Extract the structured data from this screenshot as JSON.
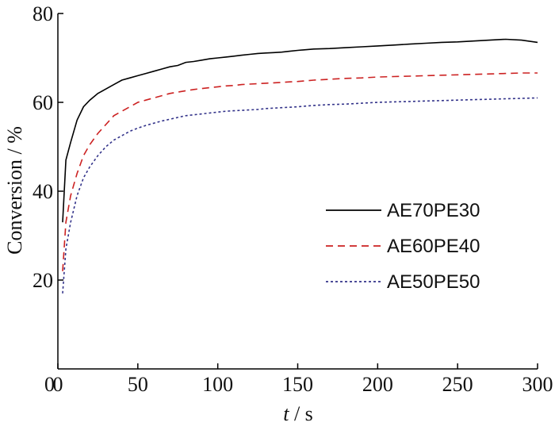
{
  "chart_data": {
    "type": "line",
    "xlabel_italic": "t",
    "xlabel_rest": " / s",
    "ylabel": "Conversion / %",
    "xlim": [
      0,
      300
    ],
    "ylim": [
      0,
      80
    ],
    "xticks": [
      0,
      50,
      100,
      150,
      200,
      250,
      300
    ],
    "yticks": [
      20,
      40,
      60,
      80
    ],
    "grid": false,
    "legend_position": "right",
    "series": [
      {
        "name": "AE70PE30",
        "color": "#000000",
        "dash": "solid",
        "x": [
          3,
          5,
          8,
          12,
          16,
          20,
          25,
          30,
          35,
          40,
          45,
          50,
          55,
          60,
          65,
          70,
          75,
          80,
          85,
          90,
          95,
          100,
          105,
          110,
          115,
          120,
          125,
          130,
          135,
          140,
          145,
          150,
          160,
          170,
          180,
          190,
          200,
          210,
          220,
          230,
          240,
          250,
          260,
          270,
          280,
          290,
          300
        ],
        "values": [
          33,
          47,
          51,
          56,
          59,
          60.5,
          62,
          63,
          64,
          65,
          65.5,
          66,
          66.5,
          67,
          67.5,
          68,
          68.3,
          69,
          69.2,
          69.5,
          69.8,
          70,
          70.2,
          70.4,
          70.6,
          70.8,
          71,
          71.1,
          71.2,
          71.3,
          71.5,
          71.7,
          72,
          72.1,
          72.3,
          72.5,
          72.7,
          72.9,
          73.1,
          73.3,
          73.5,
          73.6,
          73.8,
          74,
          74.2,
          74,
          73.5
        ]
      },
      {
        "name": "AE60PE40",
        "color": "#cc2222",
        "dash": "dashed",
        "x": [
          3,
          5,
          8,
          12,
          16,
          20,
          25,
          30,
          35,
          40,
          45,
          50,
          55,
          60,
          65,
          70,
          75,
          80,
          85,
          90,
          95,
          100,
          105,
          110,
          115,
          120,
          125,
          130,
          135,
          140,
          145,
          150,
          160,
          170,
          180,
          190,
          200,
          210,
          220,
          230,
          240,
          250,
          260,
          270,
          280,
          290,
          300
        ],
        "values": [
          22,
          33,
          39,
          44,
          48,
          50.5,
          53,
          55,
          57,
          58,
          59,
          60,
          60.5,
          61,
          61.5,
          62,
          62.3,
          62.6,
          62.9,
          63.1,
          63.3,
          63.5,
          63.7,
          63.8,
          64,
          64.1,
          64.2,
          64.3,
          64.4,
          64.5,
          64.6,
          64.7,
          65,
          65.2,
          65.4,
          65.5,
          65.7,
          65.8,
          65.9,
          66,
          66.1,
          66.2,
          66.3,
          66.4,
          66.5,
          66.6,
          66.6
        ]
      },
      {
        "name": "AE50PE50",
        "color": "#33338a",
        "dash": "dotted",
        "x": [
          3,
          5,
          8,
          12,
          16,
          20,
          25,
          30,
          35,
          40,
          45,
          50,
          55,
          60,
          65,
          70,
          75,
          80,
          85,
          90,
          95,
          100,
          105,
          110,
          115,
          120,
          125,
          130,
          135,
          140,
          145,
          150,
          160,
          170,
          180,
          190,
          200,
          210,
          220,
          230,
          240,
          250,
          260,
          270,
          280,
          290,
          300
        ],
        "values": [
          17,
          27,
          33,
          39,
          43,
          45.5,
          48,
          50,
          51.5,
          52.5,
          53.5,
          54.2,
          54.8,
          55.3,
          55.8,
          56.2,
          56.6,
          57,
          57.2,
          57.4,
          57.6,
          57.8,
          58,
          58.1,
          58.2,
          58.3,
          58.4,
          58.6,
          58.7,
          58.8,
          58.9,
          59,
          59.3,
          59.5,
          59.6,
          59.8,
          60,
          60.1,
          60.2,
          60.3,
          60.4,
          60.5,
          60.6,
          60.7,
          60.8,
          60.9,
          61
        ]
      }
    ]
  }
}
